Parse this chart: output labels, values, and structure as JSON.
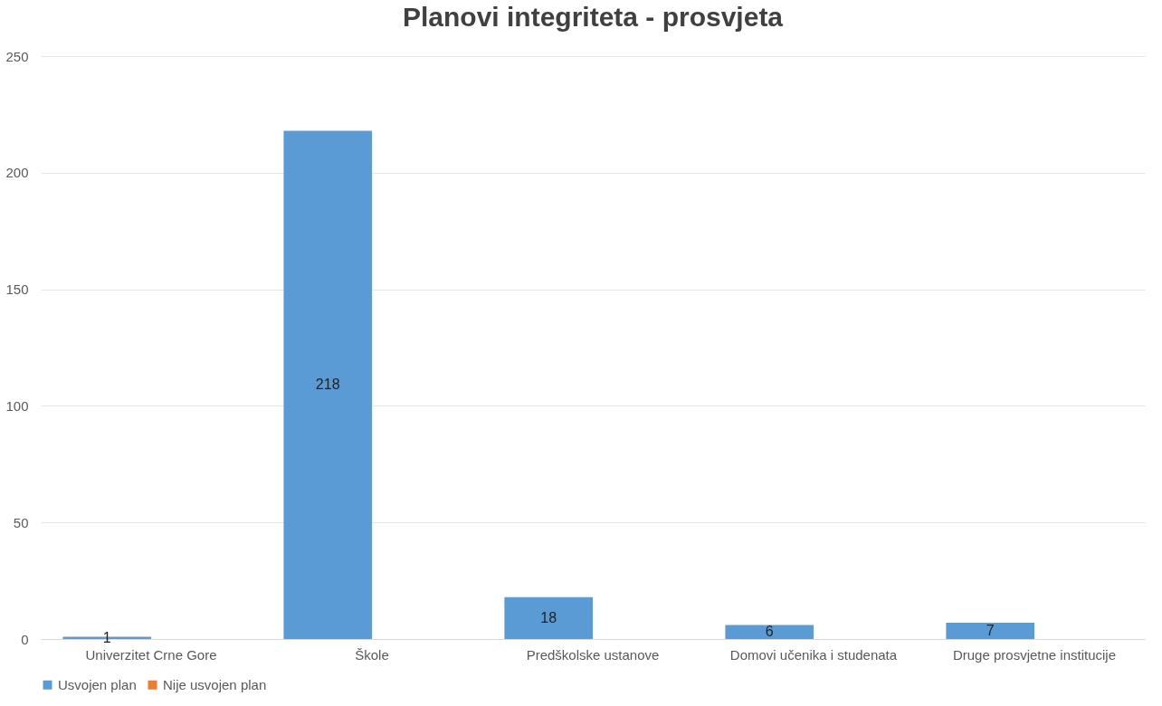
{
  "chart_data": {
    "type": "bar",
    "title": "Planovi integriteta - prosvjeta",
    "categories": [
      "Univerzitet Crne Gore",
      "Škole",
      "Predškolske ustanove",
      "Domovi učenika i studenata",
      "Druge prosvjetne institucije"
    ],
    "series": [
      {
        "name": "Usvojen plan",
        "color": "#5b9bd5",
        "values": [
          1,
          218,
          18,
          6,
          7
        ]
      },
      {
        "name": "Nije usvojen plan",
        "color": "#ed7d31",
        "values": [
          null,
          null,
          null,
          null,
          null
        ]
      }
    ],
    "ylim": [
      0,
      250
    ],
    "yticks": [
      0,
      50,
      100,
      150,
      200,
      250
    ],
    "grid": "y",
    "legend": "bottom",
    "data_labels": true
  }
}
